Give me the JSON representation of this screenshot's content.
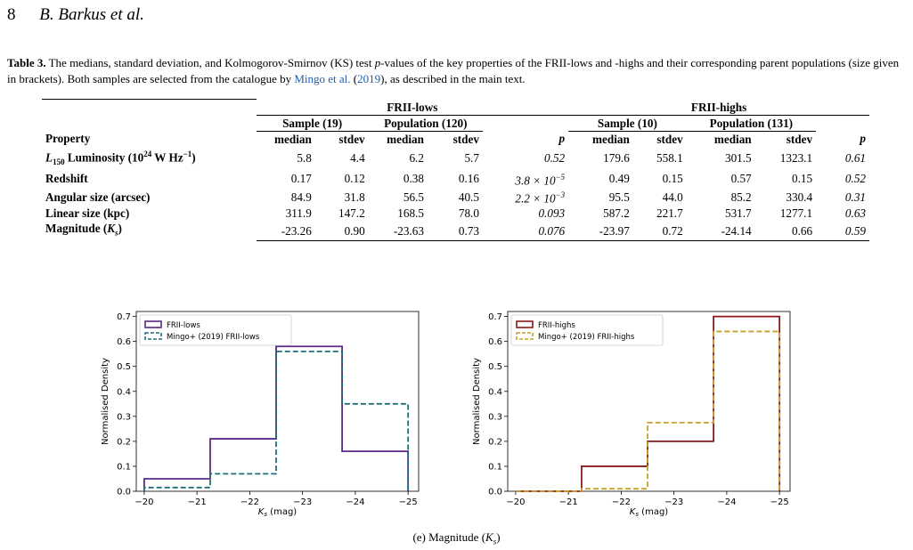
{
  "header": {
    "page_number": "8",
    "authors": "B. Barkus et al."
  },
  "caption": {
    "label": "Table 3.",
    "text_part1": " The medians, standard deviation, and Kolmogorov-Smirnov (KS) test ",
    "p_symbol": "p",
    "text_part2": "-values of the key properties of the FRII-lows and -highs and their corresponding parent populations (size given in brackets). Both samples are selected from the catalogue by ",
    "cite_name": "Mingo et al.",
    "cite_open": " (",
    "cite_year": "2019",
    "cite_close": ")",
    "text_part3": ", as described in the main text."
  },
  "table": {
    "group_lows": "FRII-lows",
    "group_highs": "FRII-highs",
    "sample_lows": "Sample (19)",
    "pop_lows": "Population (120)",
    "sample_highs": "Sample (10)",
    "pop_highs": "Population (131)",
    "col_property": "Property",
    "col_median": "median",
    "col_stdev": "stdev",
    "col_p": "p",
    "rows": [
      {
        "label_html": "<i>L</i><sub style=\"font-size:9px\">150</sub> Luminosity (10<sup style=\"font-size:9px\">24</sup> W Hz<sup style=\"font-size:9px\">−1</sup>)",
        "v": [
          "5.8",
          "4.4",
          "6.2",
          "5.7",
          "0.52",
          "179.6",
          "558.1",
          "301.5",
          "1323.1",
          "0.61"
        ]
      },
      {
        "label_html": "Redshift",
        "v": [
          "0.17",
          "0.12",
          "0.38",
          "0.16",
          "3.8 × 10<sup style=\"font-size:9px\">−5</sup>",
          "0.49",
          "0.15",
          "0.57",
          "0.15",
          "0.52"
        ]
      },
      {
        "label_html": "Angular size (arcsec)",
        "v": [
          "84.9",
          "31.8",
          "56.5",
          "40.5",
          "2.2 × 10<sup style=\"font-size:9px\">−3</sup>",
          "95.5",
          "44.0",
          "85.2",
          "330.4",
          "0.31"
        ]
      },
      {
        "label_html": "Linear size (kpc)",
        "v": [
          "311.9",
          "147.2",
          "168.5",
          "78.0",
          "0.093",
          "587.2",
          "221.7",
          "531.7",
          "1277.1",
          "0.63"
        ]
      },
      {
        "label_html": "Magnitude (<i>K<sub style=\"font-size:9px\">s</sub></i>)",
        "v": [
          "-23.26",
          "0.90",
          "-23.63",
          "0.73",
          "0.076",
          "-23.97",
          "0.72",
          "-24.14",
          "0.66",
          "0.59"
        ]
      }
    ]
  },
  "subcaption": "(e) Magnitude (K_s)",
  "chart_data": [
    {
      "type": "histogram-step",
      "xlabel": "K_s (mag)",
      "ylabel": "Normalised Density",
      "xlim": [
        -19.85,
        -25.2
      ],
      "ylim": [
        0.0,
        0.72
      ],
      "x_ticks": [
        "−20",
        "−21",
        "−22",
        "−23",
        "−24",
        "−25"
      ],
      "y_ticks": [
        "0.0",
        "0.1",
        "0.2",
        "0.3",
        "0.4",
        "0.5",
        "0.6",
        "0.7"
      ],
      "legend_position": "upper-left",
      "bin_edges": [
        -20.0,
        -21.25,
        -22.5,
        -23.75,
        -25.0
      ],
      "series": [
        {
          "name": "FRII-lows",
          "color": "#5b2a86",
          "style": "solid",
          "values": [
            0.05,
            0.21,
            0.58,
            0.16
          ]
        },
        {
          "name": "Mingo+ (2019) FRII-lows",
          "color": "#1f6f78",
          "style": "dashed",
          "values": [
            0.015,
            0.07,
            0.56,
            0.35
          ]
        }
      ]
    },
    {
      "type": "histogram-step",
      "xlabel": "K_s (mag)",
      "ylabel": "Normalised Density",
      "xlim": [
        -19.85,
        -25.2
      ],
      "ylim": [
        0.0,
        0.72
      ],
      "x_ticks": [
        "−20",
        "−21",
        "−22",
        "−23",
        "−24",
        "−25"
      ],
      "y_ticks": [
        "0.0",
        "0.1",
        "0.2",
        "0.3",
        "0.4",
        "0.5",
        "0.6",
        "0.7"
      ],
      "legend_position": "upper-left",
      "bin_edges": [
        -20.0,
        -21.25,
        -22.5,
        -23.75,
        -25.0
      ],
      "series": [
        {
          "name": "FRII-highs",
          "color": "#8b1a1a",
          "style": "solid",
          "values": [
            0.0,
            0.1,
            0.2,
            0.7
          ]
        },
        {
          "name": "Mingo+ (2019) FRII-highs",
          "color": "#c8a02a",
          "style": "dashed",
          "values": [
            0.0,
            0.01,
            0.275,
            0.64
          ]
        }
      ]
    }
  ]
}
